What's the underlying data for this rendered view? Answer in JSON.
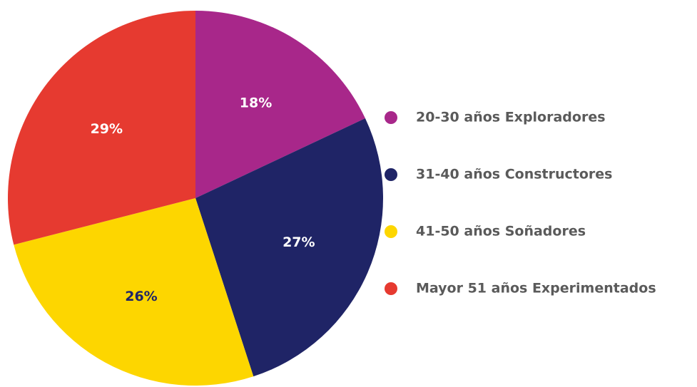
{
  "chart_data": {
    "type": "pie",
    "categories": [
      "20-30 años Exploradores",
      "31-40 años Constructores",
      "41-50 años Soñadores",
      "Mayor 51 años Experimentados"
    ],
    "values": [
      18,
      27,
      26,
      29
    ],
    "value_labels": [
      "18%",
      "27%",
      "26%",
      "29%"
    ],
    "colors": [
      "#a8278a",
      "#1f2466",
      "#fdd600",
      "#e63a30"
    ],
    "legend": "right"
  }
}
